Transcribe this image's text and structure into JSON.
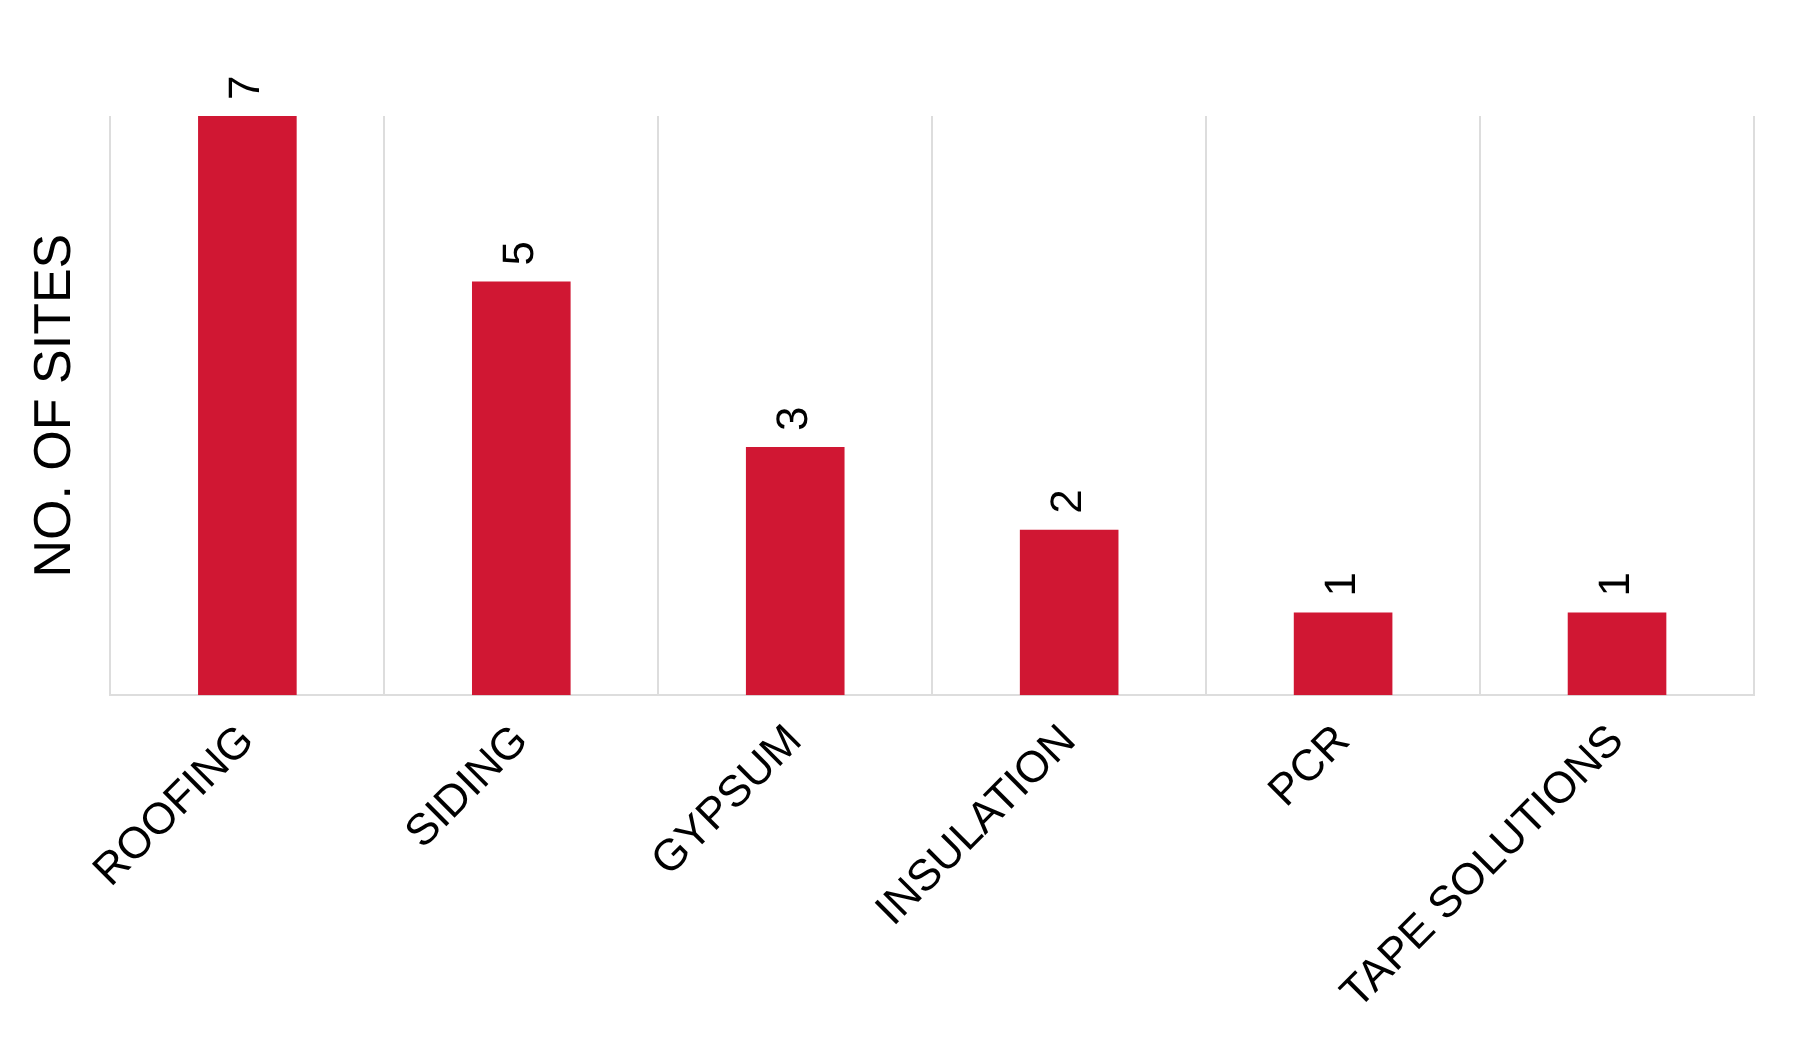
{
  "chart_data": {
    "type": "bar",
    "ylabel": "NO. OF SITES",
    "categories": [
      "ROOFING",
      "SIDING",
      "GYPSUM",
      "INSULATION",
      "PCR",
      "TAPE SOLUTIONS"
    ],
    "values": [
      7,
      5,
      3,
      2,
      1,
      1
    ],
    "color": "#d01733",
    "data_labels": true,
    "grid": "x",
    "tick_labels": "x",
    "legend": false
  }
}
